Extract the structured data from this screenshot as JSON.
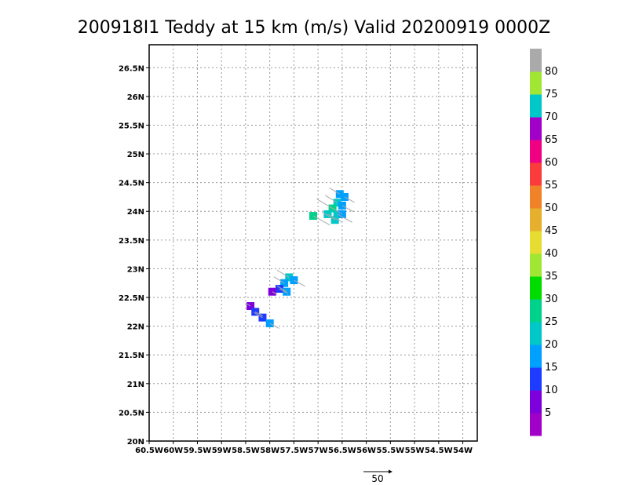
{
  "chart_data": {
    "type": "scatter",
    "title": "200918I1 Teddy at 15 km (m/s) Valid 20200919 0000Z",
    "x_axis": {
      "range": [
        -60.5,
        -53.7
      ],
      "ticks": [
        -60.5,
        -60,
        -59.5,
        -59,
        -58.5,
        -58,
        -57.5,
        -57,
        -56.5,
        -56,
        -55.5,
        -55,
        -54.5,
        -54
      ],
      "tick_labels": [
        "60.5W",
        "60W",
        "59.5W",
        "59W",
        "58.5W",
        "58W",
        "57.5W",
        "57W",
        "56.5W",
        "56W",
        "55.5W",
        "55W",
        "54.5W",
        "54W"
      ]
    },
    "y_axis": {
      "range": [
        20,
        26.9
      ],
      "ticks": [
        20,
        20.5,
        21,
        21.5,
        22,
        22.5,
        23,
        23.5,
        24,
        24.5,
        25,
        25.5,
        26,
        26.5
      ],
      "tick_labels": [
        "20N",
        "20.5N",
        "21N",
        "21.5N",
        "22N",
        "22.5N",
        "23N",
        "23.5N",
        "24N",
        "24.5N",
        "25N",
        "25.5N",
        "26N",
        "26.5N"
      ]
    },
    "grid": true,
    "colorbar": {
      "placement": "right",
      "colors": [
        "#a000c8",
        "#7d00dc",
        "#1e3cff",
        "#00a0ff",
        "#00c8c8",
        "#00d28c",
        "#00dc00",
        "#a0e632",
        "#e6dc32",
        "#e6af2d",
        "#f08228",
        "#fa3c3c",
        "#f00082",
        "#a000c8",
        "#00c8c8",
        "#a0e632",
        "#aaaaaa"
      ],
      "labels": [
        "5",
        "10",
        "15",
        "20",
        "25",
        "30",
        "35",
        "40",
        "45",
        "50",
        "55",
        "60",
        "65",
        "70",
        "75",
        "80"
      ]
    },
    "series": [
      {
        "points": [
          {
            "lon": -56.55,
            "lat": 24.3,
            "speed": 17
          },
          {
            "lon": -56.45,
            "lat": 24.25,
            "speed": 16
          },
          {
            "lon": -56.6,
            "lat": 24.15,
            "speed": 20
          },
          {
            "lon": -56.5,
            "lat": 24.1,
            "speed": 18
          },
          {
            "lon": -56.7,
            "lat": 24.05,
            "speed": 26
          },
          {
            "lon": -56.6,
            "lat": 23.95,
            "speed": 24
          },
          {
            "lon": -56.5,
            "lat": 23.95,
            "speed": 16
          },
          {
            "lon": -56.8,
            "lat": 23.95,
            "speed": 22
          },
          {
            "lon": -56.65,
            "lat": 23.85,
            "speed": 21
          },
          {
            "lon": -57.1,
            "lat": 23.92,
            "speed": 27
          },
          {
            "lon": -57.6,
            "lat": 22.85,
            "speed": 20
          },
          {
            "lon": -57.5,
            "lat": 22.8,
            "speed": 18
          },
          {
            "lon": -57.7,
            "lat": 22.75,
            "speed": 17
          },
          {
            "lon": -57.8,
            "lat": 22.65,
            "speed": 14
          },
          {
            "lon": -57.65,
            "lat": 22.6,
            "speed": 16
          },
          {
            "lon": -57.95,
            "lat": 22.6,
            "speed": 8
          },
          {
            "lon": -58.4,
            "lat": 22.35,
            "speed": 8
          },
          {
            "lon": -58.3,
            "lat": 22.25,
            "speed": 12
          },
          {
            "lon": -58.15,
            "lat": 22.15,
            "speed": 14
          },
          {
            "lon": -58.0,
            "lat": 22.05,
            "speed": 15
          }
        ]
      }
    ],
    "reference_vector": {
      "label": "50"
    }
  }
}
